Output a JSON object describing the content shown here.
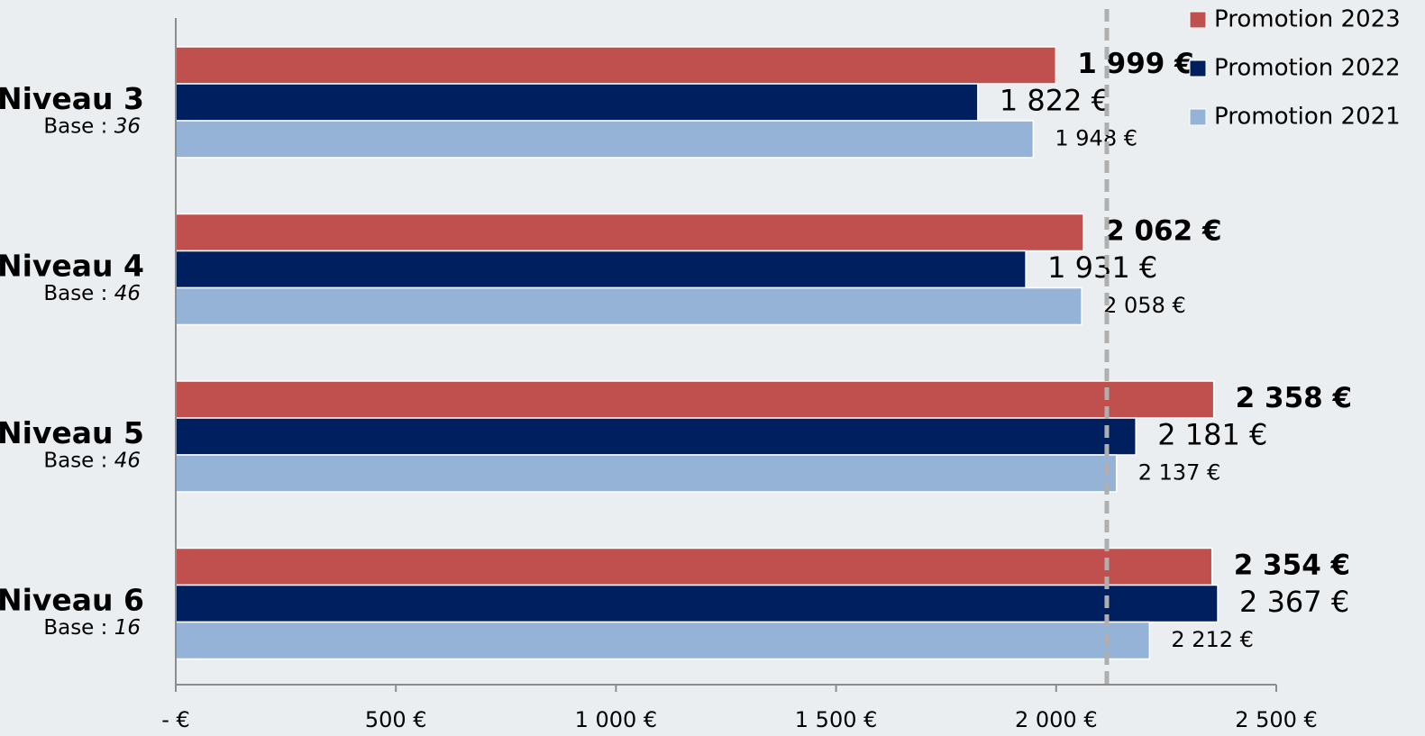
{
  "chart_data": {
    "type": "bar",
    "orientation": "horizontal",
    "categories": [
      "Niveau 3",
      "Niveau 4",
      "Niveau 5",
      "Niveau 6"
    ],
    "bases": [
      "36",
      "46",
      "46",
      "16"
    ],
    "base_prefix": "Base : ",
    "series": [
      {
        "name": "Promotion 2023",
        "color": "#C0504D",
        "values": [
          1999,
          2062,
          2358,
          2354
        ],
        "labels": [
          "1 999 €",
          "2 062 €",
          "2 358 €",
          "2 354 €"
        ]
      },
      {
        "name": "Promotion 2022",
        "color": "#001F5F",
        "values": [
          1822,
          1931,
          2181,
          2367
        ],
        "labels": [
          "1 822 €",
          "1 931 €",
          "2 181 €",
          "2 367 €"
        ]
      },
      {
        "name": "Promotion 2021",
        "color": "#95B3D7",
        "values": [
          1948,
          2058,
          2137,
          2212
        ],
        "labels": [
          "1 948 €",
          "2 058 €",
          "2 137 €",
          "2 212 €"
        ]
      }
    ],
    "xlim": [
      0,
      2500
    ],
    "x_ticks": [
      0,
      500,
      1000,
      1500,
      2000,
      2500
    ],
    "x_tick_labels": [
      "-  €",
      "500 €",
      "1 000 €",
      "1 500 €",
      "2 000 €",
      "2 500 €"
    ],
    "reference_line": {
      "value": 2115,
      "style": "dashed",
      "color": "#AFAFAF"
    },
    "legend_position": "top-right",
    "grid": false,
    "title": "",
    "xlabel": "",
    "ylabel": ""
  }
}
